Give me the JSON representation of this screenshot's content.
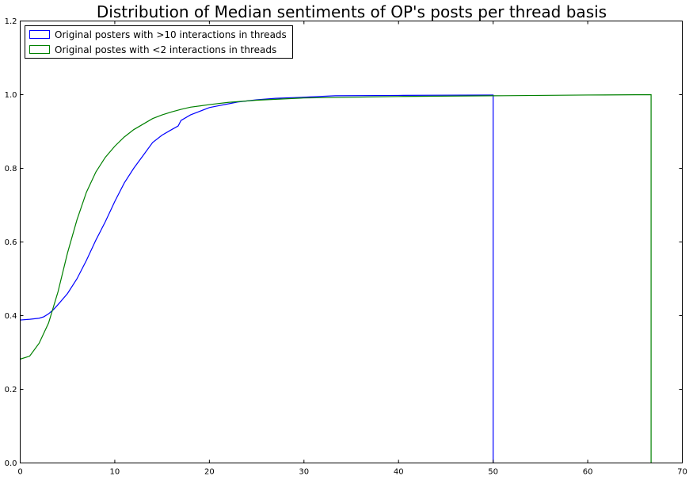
{
  "chart_data": {
    "type": "line",
    "title": "Distribution of Median sentiments of OP's posts per thread basis",
    "xlabel": "",
    "ylabel": "",
    "xlim": [
      0,
      70
    ],
    "ylim": [
      0,
      1.2
    ],
    "x_ticks": [
      "0",
      "10",
      "20",
      "30",
      "40",
      "50",
      "60",
      "70"
    ],
    "y_ticks": [
      "0.0",
      "0.2",
      "0.4",
      "0.6",
      "0.8",
      "1.0",
      "1.2"
    ],
    "grid": false,
    "legend_position": "top-left",
    "series": [
      {
        "name": "Original posters with >10 interactions in threads",
        "color": "#0000ff",
        "x": [
          0,
          1,
          2,
          2.5,
          3,
          3.5,
          4,
          5,
          6,
          7,
          8,
          9,
          10,
          11,
          12,
          13,
          14,
          15,
          16,
          16.7,
          17,
          18,
          19,
          20,
          21,
          22,
          23,
          24,
          25,
          27,
          30,
          33.3,
          40,
          50,
          50
        ],
        "values": [
          0.388,
          0.39,
          0.393,
          0.397,
          0.405,
          0.416,
          0.43,
          0.46,
          0.5,
          0.55,
          0.605,
          0.655,
          0.71,
          0.76,
          0.8,
          0.835,
          0.87,
          0.89,
          0.905,
          0.915,
          0.93,
          0.945,
          0.955,
          0.965,
          0.97,
          0.975,
          0.98,
          0.983,
          0.986,
          0.99,
          0.993,
          0.997,
          0.998,
          0.999,
          0.0
        ]
      },
      {
        "name": "Original postes with <2 interactions in threads",
        "color": "#008000",
        "x": [
          0,
          1,
          2,
          3,
          4,
          5,
          6,
          7,
          8,
          9,
          10,
          11,
          12,
          13,
          14,
          15,
          16,
          17,
          18,
          20,
          22,
          25,
          30,
          40,
          50,
          60,
          66.7,
          66.7
        ],
        "values": [
          0.282,
          0.29,
          0.325,
          0.38,
          0.465,
          0.57,
          0.66,
          0.735,
          0.79,
          0.83,
          0.86,
          0.885,
          0.905,
          0.92,
          0.935,
          0.945,
          0.953,
          0.96,
          0.966,
          0.973,
          0.979,
          0.985,
          0.991,
          0.995,
          0.997,
          0.999,
          1.0,
          0.0
        ]
      }
    ]
  }
}
